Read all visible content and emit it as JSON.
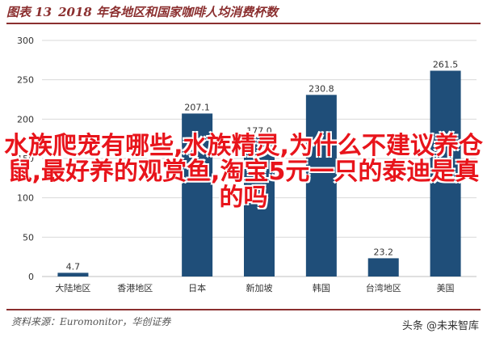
{
  "header": {
    "figure_label": "图表 13",
    "figure_title": "2018 年各地区和国家咖啡人均消费杯数"
  },
  "footer": {
    "source": "资料来源：Euromonitor，华创证券",
    "watermark": "头条 @未来智库"
  },
  "overlay": {
    "text": "水族爬宠有哪些,水族精灵,为什么不建议养仓鼠,最好养的观赏鱼,淘宝5元一只的泰迪是真的吗"
  },
  "chart_data": {
    "type": "bar",
    "categories": [
      "大陆地区",
      "香港地区",
      "日本",
      "新加坡",
      "韩国",
      "台湾地区",
      "美国"
    ],
    "values": [
      4.7,
      0,
      207.1,
      177.0,
      230.8,
      23.2,
      261.5
    ],
    "value_labels": [
      "4.7",
      "",
      "207.1",
      "177.0",
      "230.8",
      "23.2",
      "261.5"
    ],
    "ylim": [
      0,
      300
    ],
    "yticks": [
      "0",
      "50",
      "100",
      "150",
      "200",
      "250",
      "300"
    ],
    "grid": true,
    "bar_color": "#1f4e79",
    "title": "",
    "xlabel": "",
    "ylabel": ""
  }
}
